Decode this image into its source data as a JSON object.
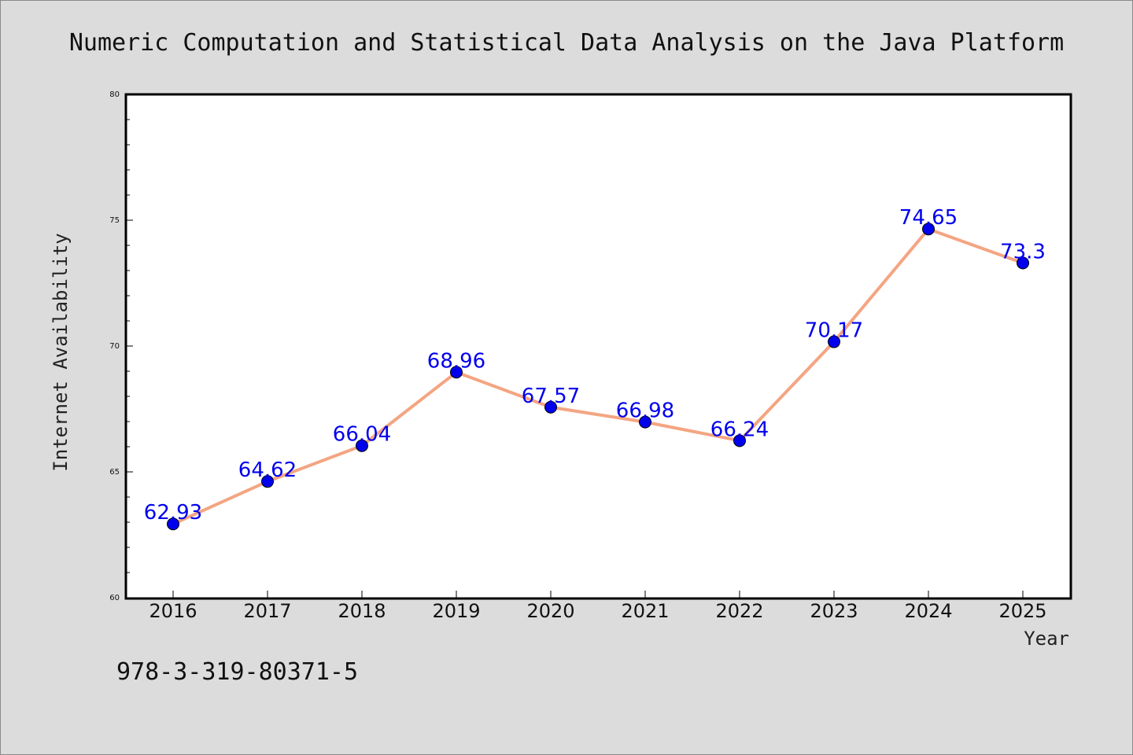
{
  "chart_data": {
    "type": "line",
    "title": "Numeric Computation and Statistical Data Analysis on the Java Platform",
    "xlabel": "Year",
    "ylabel": "Internet Availability",
    "categories": [
      "2016",
      "2017",
      "2018",
      "2019",
      "2020",
      "2021",
      "2022",
      "2023",
      "2024",
      "2025"
    ],
    "series": [
      {
        "values": [
          62.93,
          64.62,
          66.04,
          68.96,
          67.57,
          66.98,
          66.24,
          70.17,
          74.65,
          73.3
        ],
        "data_labels": [
          "62.93",
          "64.62",
          "66.04",
          "68.96",
          "67.57",
          "66.98",
          "66.24",
          "70.17",
          "74.65",
          "73.3"
        ]
      }
    ],
    "ylim": [
      60,
      80
    ],
    "y_ticks": [
      60,
      65,
      70,
      75,
      80
    ],
    "grid": false,
    "colors": {
      "line": "#f4a582",
      "marker": "#0000ee",
      "data_label": "#0000ee",
      "plot_background": "#ffffff",
      "page_background": "#dcdcdc"
    }
  },
  "footer": {
    "isbn": "978-3-319-80371-5"
  }
}
